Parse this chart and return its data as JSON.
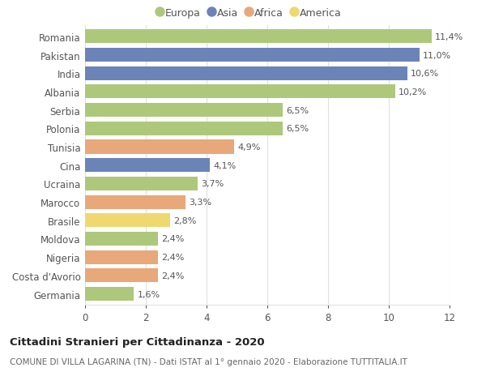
{
  "categories": [
    "Romania",
    "Pakistan",
    "India",
    "Albania",
    "Serbia",
    "Polonia",
    "Tunisia",
    "Cina",
    "Ucraina",
    "Marocco",
    "Brasile",
    "Moldova",
    "Nigeria",
    "Costa d'Avorio",
    "Germania"
  ],
  "values": [
    11.4,
    11.0,
    10.6,
    10.2,
    6.5,
    6.5,
    4.9,
    4.1,
    3.7,
    3.3,
    2.8,
    2.4,
    2.4,
    2.4,
    1.6
  ],
  "labels": [
    "11,4%",
    "11,0%",
    "10,6%",
    "10,2%",
    "6,5%",
    "6,5%",
    "4,9%",
    "4,1%",
    "3,7%",
    "3,3%",
    "2,8%",
    "2,4%",
    "2,4%",
    "2,4%",
    "1,6%"
  ],
  "continents": [
    "Europa",
    "Asia",
    "Asia",
    "Europa",
    "Europa",
    "Europa",
    "Africa",
    "Asia",
    "Europa",
    "Africa",
    "America",
    "Europa",
    "Africa",
    "Africa",
    "Europa"
  ],
  "colors": {
    "Europa": "#adc87a",
    "Asia": "#6b84b8",
    "Africa": "#e8a87a",
    "America": "#f0d870"
  },
  "legend_order": [
    "Europa",
    "Asia",
    "Africa",
    "America"
  ],
  "title": "Cittadini Stranieri per Cittadinanza - 2020",
  "subtitle": "COMUNE DI VILLA LAGARINA (TN) - Dati ISTAT al 1° gennaio 2020 - Elaborazione TUTTITALIA.IT",
  "xlim": [
    0,
    12
  ],
  "xticks": [
    0,
    2,
    4,
    6,
    8,
    10,
    12
  ],
  "background_color": "#ffffff",
  "grid_color": "#e0e0e0"
}
